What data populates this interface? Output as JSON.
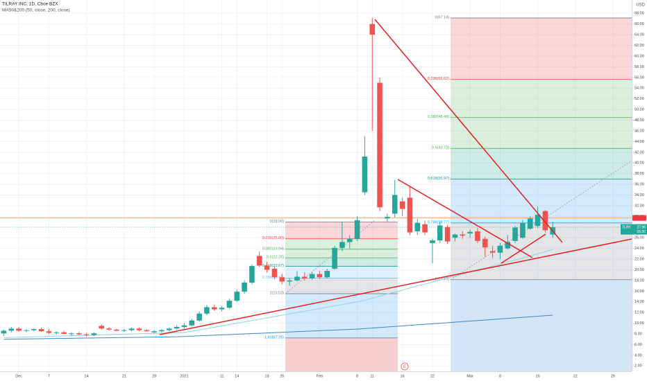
{
  "chart_data": {
    "type": "candlestick",
    "title": "TILRAY INC, 1D, Cboe BZX",
    "subtitle": "MA50&200 (50, close, 200, close)",
    "y_axis_label": "USD",
    "up_color": "#26a69a",
    "down_color": "#ef5350",
    "grid": true,
    "categories": [
      null,
      null,
      "Dec",
      null,
      null,
      null,
      "7",
      null,
      null,
      null,
      null,
      "14",
      null,
      null,
      null,
      null,
      "21",
      null,
      null,
      null,
      "28",
      null,
      null,
      null,
      "2021",
      null,
      null,
      null,
      null,
      "11",
      null,
      "14",
      null,
      null,
      null,
      "18",
      null,
      "25",
      null,
      null,
      null,
      null,
      "Feb",
      null,
      null,
      null,
      null,
      "8",
      null,
      "11",
      null,
      null,
      null,
      "16",
      null,
      null,
      null,
      "22",
      null,
      null,
      null,
      null,
      "Mar",
      null,
      null,
      null,
      "8",
      null,
      null,
      null,
      null,
      "15",
      null,
      null,
      null,
      null,
      "22",
      null,
      null,
      null,
      null,
      "29",
      null,
      null
    ],
    "open": [
      8.1,
      8.6,
      9.0,
      8.6,
      8.7,
      8.9,
      8.5,
      8.2,
      8.3,
      8.0,
      8.1,
      7.9,
      7.8,
      9.5,
      9.0,
      8.8,
      8.6,
      8.7,
      9.0,
      8.7,
      8.3,
      8.5,
      8.7,
      9.0,
      9.3,
      9.6,
      10.5,
      11.8,
      13.0,
      12.6,
      12.9,
      14.2,
      15.9,
      17.6,
      22.6,
      20.8,
      20.2,
      18.6,
      17.8,
      18.0,
      18.7,
      18.4,
      19.2,
      18.6,
      20.2,
      24.1,
      25.2,
      25.8,
      34.5,
      66.0,
      55.0,
      29.6,
      30.5,
      32.8,
      33.5,
      27.2,
      28.5,
      25.0,
      25.5,
      28.0,
      26.0,
      26.6,
      26.8,
      27.2,
      25.8,
      23.5,
      23.2,
      24.0,
      25.4,
      26.0,
      27.7,
      28.2,
      31.0,
      26.6,
      null,
      null,
      null,
      null,
      null,
      null,
      null,
      null,
      null,
      null
    ],
    "high": [
      8.8,
      9.3,
      9.3,
      8.9,
      9.0,
      9.2,
      8.9,
      8.5,
      8.6,
      8.3,
      8.4,
      8.2,
      8.3,
      9.8,
      9.3,
      9.0,
      8.9,
      9.2,
      9.2,
      8.9,
      8.7,
      8.9,
      9.2,
      9.6,
      10.0,
      10.8,
      12.2,
      13.4,
      13.5,
      13.2,
      14.6,
      16.3,
      18.0,
      21.0,
      23.4,
      21.5,
      20.6,
      19.3,
      18.4,
      19.8,
      19.5,
      19.6,
      19.8,
      20.2,
      24.5,
      29.0,
      26.5,
      30.0,
      45.0,
      67.14,
      56.0,
      30.5,
      36.8,
      33.5,
      35.5,
      29.5,
      29.2,
      25.8,
      29.0,
      28.4,
      26.8,
      27.2,
      27.5,
      27.8,
      26.2,
      24.5,
      25.0,
      26.5,
      28.2,
      29.3,
      30.0,
      31.8,
      31.2,
      29.0,
      null,
      null,
      null,
      null,
      null,
      null,
      null,
      null,
      null,
      null
    ],
    "low": [
      7.6,
      8.3,
      8.4,
      8.3,
      8.5,
      8.4,
      8.0,
      7.9,
      7.9,
      7.7,
      7.8,
      7.5,
      7.6,
      8.8,
      8.6,
      8.5,
      8.4,
      8.5,
      8.5,
      8.4,
      8.1,
      8.3,
      8.5,
      8.8,
      9.0,
      9.4,
      10.3,
      11.5,
      12.3,
      12.2,
      12.7,
      14.0,
      15.5,
      17.3,
      20.5,
      19.5,
      18.2,
      17.3,
      17.0,
      17.8,
      18.0,
      18.1,
      18.3,
      18.4,
      20.0,
      23.5,
      24.0,
      25.4,
      34.0,
      46.0,
      31.0,
      29.0,
      29.8,
      30.0,
      26.5,
      26.5,
      26.5,
      21.2,
      25.0,
      24.8,
      25.3,
      25.8,
      26.0,
      25.0,
      22.5,
      22.2,
      22.0,
      23.8,
      25.0,
      25.8,
      27.5,
      27.8,
      27.0,
      26.0,
      null,
      null,
      null,
      null,
      null,
      null,
      null,
      null,
      null,
      null
    ],
    "close": [
      8.6,
      9.0,
      8.6,
      8.7,
      8.9,
      8.5,
      8.2,
      8.3,
      8.0,
      8.1,
      7.9,
      7.8,
      8.1,
      9.0,
      8.8,
      8.6,
      8.7,
      9.0,
      8.7,
      8.5,
      8.5,
      8.7,
      9.0,
      9.3,
      9.6,
      10.5,
      11.8,
      13.0,
      12.6,
      12.9,
      14.2,
      15.9,
      17.6,
      20.7,
      20.8,
      20.0,
      18.6,
      17.8,
      18.0,
      18.7,
      18.4,
      19.2,
      18.6,
      19.8,
      24.1,
      25.2,
      25.8,
      29.3,
      41.2,
      64.0,
      31.7,
      29.9,
      34.0,
      31.4,
      27.0,
      28.8,
      27.0,
      25.5,
      28.3,
      25.3,
      26.6,
      26.4,
      27.1,
      25.4,
      24.2,
      23.2,
      24.5,
      25.2,
      27.9,
      28.8,
      29.6,
      30.3,
      27.4,
      27.96,
      null,
      null,
      null,
      null,
      null,
      null,
      null,
      null,
      null,
      null
    ],
    "overlays": [
      {
        "color": "#8fd3dc",
        "values": [
          7.3,
          7.34,
          7.38,
          7.42,
          7.46,
          7.5,
          7.54,
          7.58,
          7.62,
          7.66,
          7.7,
          7.74,
          7.78,
          7.82,
          7.86,
          7.9,
          7.94,
          7.98,
          8.02,
          8.06,
          8.1,
          8.14,
          8.18,
          8.22,
          8.26,
          8.5,
          8.75,
          9.0,
          9.25,
          9.5,
          9.75,
          10.0,
          10.25,
          10.5,
          10.75,
          11.0,
          11.25,
          11.5,
          11.75,
          12.0,
          12.25,
          12.5,
          12.75,
          13.0,
          13.25,
          13.5,
          13.75,
          14.0,
          14.3,
          14.7,
          15.1,
          15.5,
          15.8,
          16.2,
          16.6,
          17.0,
          17.3,
          17.7,
          18.1,
          18.5,
          18.8,
          19.2,
          19.6,
          20.0,
          20.3,
          20.7,
          21.1,
          21.5,
          21.8,
          22.2,
          22.6,
          23.0,
          23.4,
          23.8,
          null,
          null,
          null,
          null,
          null,
          null,
          null,
          null,
          null,
          null
        ]
      },
      {
        "color": "#3d85c6",
        "values": [
          7.0,
          7.02,
          7.04,
          7.06,
          7.08,
          7.1,
          7.12,
          7.14,
          7.16,
          7.18,
          7.2,
          7.22,
          7.24,
          7.26,
          7.28,
          7.3,
          7.32,
          7.34,
          7.36,
          7.38,
          7.4,
          7.42,
          7.44,
          7.46,
          7.52,
          7.58,
          7.64,
          7.7,
          7.76,
          7.82,
          7.88,
          7.94,
          8.0,
          8.06,
          8.12,
          8.18,
          8.24,
          8.3,
          8.36,
          8.42,
          8.48,
          8.54,
          8.6,
          8.66,
          8.72,
          8.78,
          8.84,
          8.9,
          9.0,
          9.1,
          9.2,
          9.3,
          9.4,
          9.5,
          9.6,
          9.7,
          9.8,
          9.9,
          10.0,
          10.1,
          10.2,
          10.3,
          10.4,
          10.5,
          10.6,
          10.7,
          10.8,
          10.9,
          11.0,
          11.1,
          11.2,
          11.3,
          11.4,
          11.5,
          null,
          null,
          null,
          null,
          null,
          null,
          null,
          null,
          null,
          null
        ]
      }
    ],
    "fibs": [
      {
        "levels": [
          {
            "value": 28.96,
            "label": "0(28.96)",
            "color": "#787b86"
          },
          {
            "value": 25.8,
            "label": "0.236(25.80)",
            "color": "#f23645"
          },
          {
            "value": 23.84,
            "label": "0.382(23.84)",
            "color": "#4caf50"
          },
          {
            "value": 22.25,
            "label": "0.5(22.25)",
            "color": "#4caf50"
          },
          {
            "value": 20.67,
            "label": "0.618(20.67)",
            "color": "#089981"
          },
          {
            "value": 18.42,
            "label": "0.786(18.42)",
            "color": "#64b5f6"
          },
          {
            "value": 15.53,
            "label": "1(15.53)",
            "color": "#787b86"
          },
          {
            "value": 7.25,
            "label": "1.618(7.25)",
            "color": "#2196f3"
          }
        ]
      },
      {
        "levels": [
          {
            "value": 67.14,
            "label": "0(67.14)",
            "color": "#787b86"
          },
          {
            "value": 55.62,
            "label": "0.236(55.62)",
            "color": "#f23645"
          },
          {
            "value": 48.49,
            "label": "0.382(48.49)",
            "color": "#4caf50"
          },
          {
            "value": 42.73,
            "label": "0.5(42.73)",
            "color": "#4caf50"
          },
          {
            "value": 36.97,
            "label": "0.618(36.97)",
            "color": "#089981"
          },
          {
            "value": 28.77,
            "label": "0.786(28.77)",
            "color": "#2196f3"
          },
          {
            "value": 18.15,
            "label": "1(18.15)",
            "color": "#787b86"
          }
        ]
      }
    ],
    "price_line": 29.7,
    "last_price": {
      "symbol": "TLRY",
      "value": 27.96,
      "countdown": "05:30"
    },
    "event_label": "E",
    "ylim": [
      1,
      70.5
    ],
    "yticks": [
      {
        "value": 2,
        "label": "2.00"
      },
      {
        "value": 4,
        "label": "4.00"
      },
      {
        "value": 6,
        "label": "6.00"
      },
      {
        "value": 8,
        "label": "8.00"
      },
      {
        "value": 10,
        "label": "10.00"
      },
      {
        "value": 12,
        "label": "12.00"
      },
      {
        "value": 14,
        "label": "14.00"
      },
      {
        "value": 16,
        "label": "16.00"
      },
      {
        "value": 18,
        "label": "18.00"
      },
      {
        "value": 20,
        "label": "20.00"
      },
      {
        "value": 22,
        "label": "22.00"
      },
      {
        "value": 24,
        "label": "24.00"
      },
      {
        "value": 26,
        "label": "26.00"
      },
      {
        "value": 28,
        "label": "28.00"
      },
      {
        "value": 30,
        "label": "30.00"
      },
      {
        "value": 32,
        "label": "32.00"
      },
      {
        "value": 34,
        "label": "34.00"
      },
      {
        "value": 36,
        "label": "36.00"
      },
      {
        "value": 38,
        "label": "38.00"
      },
      {
        "value": 40,
        "label": "40.00"
      },
      {
        "value": 42,
        "label": "42.00"
      },
      {
        "value": 44,
        "label": "44.00"
      },
      {
        "value": 46,
        "label": "46.00"
      },
      {
        "value": 48,
        "label": "48.00"
      },
      {
        "value": 50,
        "label": "50.00"
      },
      {
        "value": 52,
        "label": "52.00"
      },
      {
        "value": 54,
        "label": "54.00"
      },
      {
        "value": 56,
        "label": "56.00"
      },
      {
        "value": 58,
        "label": "58.00"
      },
      {
        "value": 60,
        "label": "60.00"
      },
      {
        "value": 62,
        "label": "62.00"
      },
      {
        "value": 64,
        "label": "64.00"
      },
      {
        "value": 66,
        "label": "66.00"
      },
      {
        "value": 68,
        "label": "68.00"
      }
    ]
  }
}
